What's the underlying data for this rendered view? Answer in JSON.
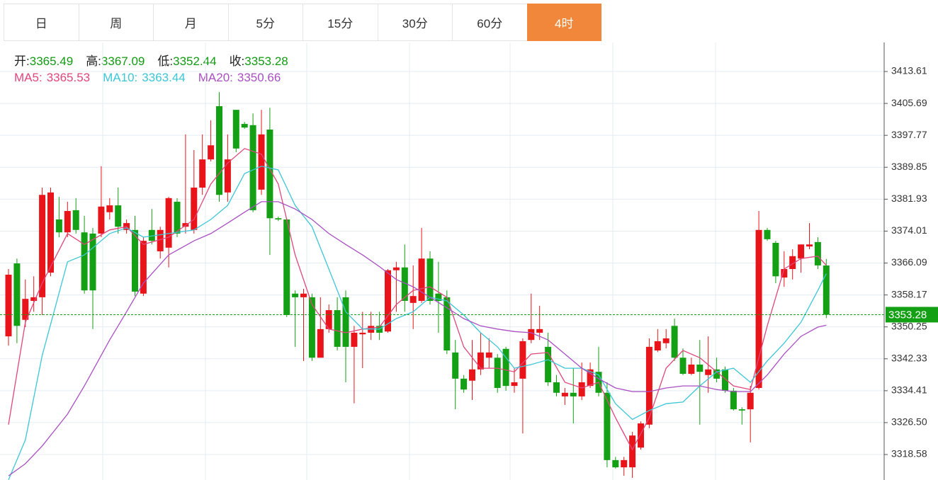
{
  "tabs": {
    "items": [
      "日",
      "周",
      "月",
      "5分",
      "15分",
      "30分",
      "60分",
      "4时"
    ],
    "active": 7
  },
  "chart_data": {
    "type": "candlestick",
    "summary": [
      {
        "label": "开:",
        "value": 3365.49
      },
      {
        "label": "高:",
        "value": 3367.09
      },
      {
        "label": "低:",
        "value": 3352.44
      },
      {
        "label": "收:",
        "value": 3353.28
      }
    ],
    "up_color": "#e8141a",
    "down_color": "#14a014",
    "open": [
      3347.9,
      3366.0,
      3352.0,
      3356.7,
      3357.6,
      3363.7,
      3376.9,
      3373.7,
      3379.2,
      3373.7,
      3373.4,
      3373.4,
      3378.7,
      3380.4,
      3374.3,
      3374.3,
      3358.5,
      3374.3,
      3369.0,
      3369.9,
      3381.3,
      3375.1,
      3374.3,
      3384.8,
      3391.8,
      3405.0,
      3383.6,
      3404.1,
      3400.6,
      3400.3,
      3384.3,
      3399.2,
      3377.2,
      3376.9,
      3358.5,
      3357.6,
      3357.6,
      3342.6,
      3349.7,
      3354.4,
      3357.6,
      3345.3,
      3348.4,
      3348.8,
      3350.5,
      3349.1,
      3364.3,
      3365.0,
      3356.2,
      3356.7,
      3367.2,
      3358.5,
      3357.6,
      3343.9,
      3337.4,
      3336.9,
      3339.7,
      3342.6,
      3342.6,
      3344.8,
      3335.6,
      3337.4,
      3347.0,
      3348.8,
      3345.3,
      3336.5,
      3333.0,
      3333.9,
      3333.0,
      3335.6,
      3339.1,
      3333.9,
      3317.2,
      3315.4,
      3315.4,
      3320.3,
      3326.0,
      3344.4,
      3346.2,
      3350.5,
      3342.6,
      3338.6,
      3340.9,
      3338.3,
      3339.7,
      3339.7,
      3334.4,
      3329.8,
      3329.8,
      3335.1,
      3374.3,
      3371.1,
      3362.5,
      3364.6,
      3367.2,
      3370.2,
      3371.3,
      3365.49
    ],
    "high": [
      3364.6,
      3367.2,
      3362.0,
      3362.8,
      3384.8,
      3384.8,
      3382.5,
      3381.3,
      3382.2,
      3377.8,
      3374.8,
      3390.1,
      3382.2,
      3384.8,
      3376.9,
      3377.8,
      3372.5,
      3379.5,
      3375.1,
      3382.5,
      3382.2,
      3398.0,
      3394.1,
      3398.0,
      3401.5,
      3408.5,
      3398.0,
      3404.1,
      3401.1,
      3403.2,
      3404.1,
      3404.6,
      3377.6,
      3377.2,
      3359.3,
      3359.7,
      3358.5,
      3357.6,
      3355.8,
      3357.6,
      3359.3,
      3350.5,
      3354.0,
      3354.0,
      3354.0,
      3364.6,
      3366.4,
      3370.7,
      3365.5,
      3374.8,
      3369.0,
      3366.4,
      3359.3,
      3347.0,
      3338.3,
      3347.0,
      3348.8,
      3347.4,
      3343.5,
      3345.3,
      3340.0,
      3347.4,
      3358.5,
      3355.5,
      3348.8,
      3338.3,
      3335.1,
      3340.0,
      3341.4,
      3341.4,
      3345.3,
      3336.5,
      3318.0,
      3318.0,
      3324.2,
      3326.8,
      3347.4,
      3349.7,
      3349.7,
      3352.3,
      3344.9,
      3342.6,
      3347.0,
      3347.9,
      3342.6,
      3340.4,
      3335.1,
      3330.3,
      3335.6,
      3379.0,
      3374.8,
      3371.6,
      3369.0,
      3369.5,
      3370.7,
      3376.0,
      3372.5,
      3367.09
    ],
    "low": [
      3345.6,
      3346.2,
      3350.2,
      3354.0,
      3353.2,
      3362.8,
      3372.5,
      3372.5,
      3373.4,
      3358.5,
      3349.7,
      3372.5,
      3376.9,
      3373.4,
      3373.4,
      3357.9,
      3357.9,
      3370.7,
      3367.2,
      3365.0,
      3372.5,
      3373.4,
      3373.4,
      3383.0,
      3391.3,
      3381.3,
      3381.3,
      3393.6,
      3399.4,
      3378.7,
      3383.0,
      3368.1,
      3376.5,
      3352.7,
      3345.3,
      3341.8,
      3341.8,
      3342.6,
      3348.8,
      3344.4,
      3336.5,
      3331.3,
      3340.0,
      3347.0,
      3347.0,
      3348.8,
      3354.0,
      3354.0,
      3349.7,
      3356.2,
      3355.8,
      3348.8,
      3343.5,
      3329.8,
      3333.9,
      3332.1,
      3338.3,
      3340.0,
      3333.9,
      3334.4,
      3333.9,
      3323.8,
      3346.2,
      3347.0,
      3335.6,
      3333.0,
      3330.9,
      3326.3,
      3332.1,
      3335.1,
      3333.0,
      3315.4,
      3315.1,
      3313.3,
      3312.8,
      3319.8,
      3325.1,
      3344.0,
      3344.9,
      3341.8,
      3338.3,
      3338.3,
      3326.0,
      3333.9,
      3336.5,
      3333.9,
      3329.5,
      3326.0,
      3321.6,
      3334.7,
      3371.6,
      3361.1,
      3360.2,
      3362.0,
      3363.7,
      3369.5,
      3364.6,
      3352.44
    ],
    "close": [
      3363.2,
      3350.5,
      3357.2,
      3357.6,
      3383.0,
      3383.6,
      3373.7,
      3379.0,
      3374.3,
      3359.3,
      3359.3,
      3380.1,
      3380.4,
      3375.1,
      3376.0,
      3359.0,
      3371.6,
      3371.6,
      3374.3,
      3382.2,
      3373.4,
      3376.0,
      3384.8,
      3391.8,
      3395.3,
      3383.0,
      3391.8,
      3394.5,
      3399.7,
      3379.2,
      3398.0,
      3377.2,
      3376.9,
      3353.2,
      3357.6,
      3358.5,
      3342.6,
      3349.7,
      3354.4,
      3345.3,
      3345.3,
      3348.8,
      3348.8,
      3350.5,
      3348.8,
      3364.3,
      3365.0,
      3356.7,
      3357.9,
      3367.2,
      3356.7,
      3356.7,
      3344.4,
      3337.4,
      3334.7,
      3339.7,
      3343.9,
      3343.9,
      3335.1,
      3335.6,
      3336.5,
      3346.7,
      3349.7,
      3349.7,
      3336.5,
      3333.9,
      3333.9,
      3333.0,
      3336.5,
      3339.7,
      3333.9,
      3317.2,
      3315.4,
      3317.2,
      3323.3,
      3326.3,
      3345.3,
      3346.7,
      3347.4,
      3342.6,
      3338.6,
      3340.9,
      3339.1,
      3339.7,
      3337.4,
      3334.4,
      3329.8,
      3329.5,
      3333.9,
      3374.3,
      3372.0,
      3362.8,
      3364.6,
      3367.8,
      3370.7,
      3370.7,
      3365.5,
      3353.28
    ],
    "series": [
      {
        "name": "MA5:",
        "color": "#e0457b",
        "last": 3365.53,
        "x": [
          0,
          2,
          4,
          7,
          9,
          12,
          14,
          16,
          19,
          22,
          24,
          26,
          28,
          30,
          32,
          34,
          36,
          38,
          40,
          42,
          44,
          46,
          48,
          50,
          52,
          54,
          56,
          58,
          60,
          62,
          64,
          66,
          68,
          70,
          72,
          74,
          76,
          78,
          80,
          82,
          84,
          86,
          88,
          90,
          92,
          94,
          96,
          97
        ],
        "values": [
          3326.0,
          3351.4,
          3361.1,
          3373.4,
          3370.7,
          3374.3,
          3375.1,
          3370.7,
          3372.5,
          3376.9,
          3385.7,
          3390.9,
          3394.5,
          3393.1,
          3385.7,
          3368.1,
          3355.8,
          3349.7,
          3348.8,
          3349.7,
          3350.2,
          3355.8,
          3359.3,
          3360.2,
          3357.6,
          3345.3,
          3340.0,
          3340.0,
          3339.1,
          3343.5,
          3343.9,
          3336.5,
          3335.1,
          3336.5,
          3327.7,
          3319.8,
          3327.7,
          3340.0,
          3344.4,
          3342.6,
          3339.1,
          3335.6,
          3334.7,
          3350.5,
          3364.6,
          3367.2,
          3367.8,
          3365.53
        ]
      },
      {
        "name": "MA10:",
        "color": "#3cc6d6",
        "last": 3363.44,
        "x": [
          0,
          2,
          4,
          7,
          9,
          12,
          14,
          16,
          19,
          22,
          24,
          26,
          28,
          30,
          32,
          34,
          36,
          38,
          40,
          42,
          44,
          46,
          48,
          50,
          52,
          54,
          56,
          58,
          60,
          62,
          64,
          66,
          68,
          70,
          72,
          74,
          76,
          78,
          80,
          82,
          84,
          86,
          88,
          90,
          92,
          94,
          96,
          97
        ],
        "values": [
          3312.3,
          3322.2,
          3343.2,
          3366.4,
          3368.1,
          3373.4,
          3374.8,
          3372.5,
          3373.4,
          3374.3,
          3376.9,
          3380.4,
          3388.3,
          3390.1,
          3389.2,
          3380.4,
          3375.1,
          3364.6,
          3354.0,
          3349.7,
          3349.7,
          3352.3,
          3354.0,
          3357.6,
          3356.7,
          3353.2,
          3348.8,
          3345.3,
          3340.0,
          3340.9,
          3342.1,
          3340.0,
          3340.0,
          3338.3,
          3331.2,
          3327.3,
          3329.5,
          3331.2,
          3331.6,
          3335.6,
          3339.1,
          3340.0,
          3336.5,
          3341.8,
          3346.2,
          3351.4,
          3359.3,
          3363.44
        ]
      },
      {
        "name": "MA20:",
        "color": "#a94fc2",
        "last": 3350.66,
        "x": [
          0,
          2,
          4,
          7,
          9,
          12,
          14,
          16,
          19,
          22,
          24,
          26,
          28,
          30,
          32,
          34,
          36,
          38,
          40,
          42,
          44,
          46,
          48,
          50,
          52,
          54,
          56,
          58,
          60,
          62,
          64,
          66,
          68,
          70,
          72,
          74,
          76,
          78,
          80,
          82,
          84,
          86,
          88,
          90,
          92,
          94,
          96,
          97
        ],
        "values": [
          3313.3,
          3316.3,
          3320.7,
          3328.6,
          3335.6,
          3347.0,
          3354.0,
          3361.1,
          3368.1,
          3371.6,
          3373.4,
          3376.0,
          3378.7,
          3381.3,
          3381.3,
          3379.5,
          3376.9,
          3373.4,
          3370.7,
          3368.1,
          3365.2,
          3362.0,
          3360.2,
          3357.6,
          3355.0,
          3352.3,
          3350.5,
          3349.7,
          3349.1,
          3348.8,
          3347.0,
          3343.5,
          3340.0,
          3337.4,
          3335.1,
          3334.2,
          3334.2,
          3335.1,
          3335.6,
          3335.6,
          3334.7,
          3334.2,
          3334.2,
          3338.3,
          3343.5,
          3347.9,
          3350.2,
          3350.66
        ]
      }
    ],
    "last_price": 3353.28,
    "ylim": [
      3312.26,
      3420.81
    ],
    "yticks": [
      3413.61,
      3405.69,
      3397.77,
      3389.85,
      3381.93,
      3374.01,
      3366.09,
      3358.17,
      3350.25,
      3342.33,
      3334.41,
      {
        "value": 3326.5,
        "label": "3326.50"
      },
      3318.58
    ],
    "grid": true
  }
}
